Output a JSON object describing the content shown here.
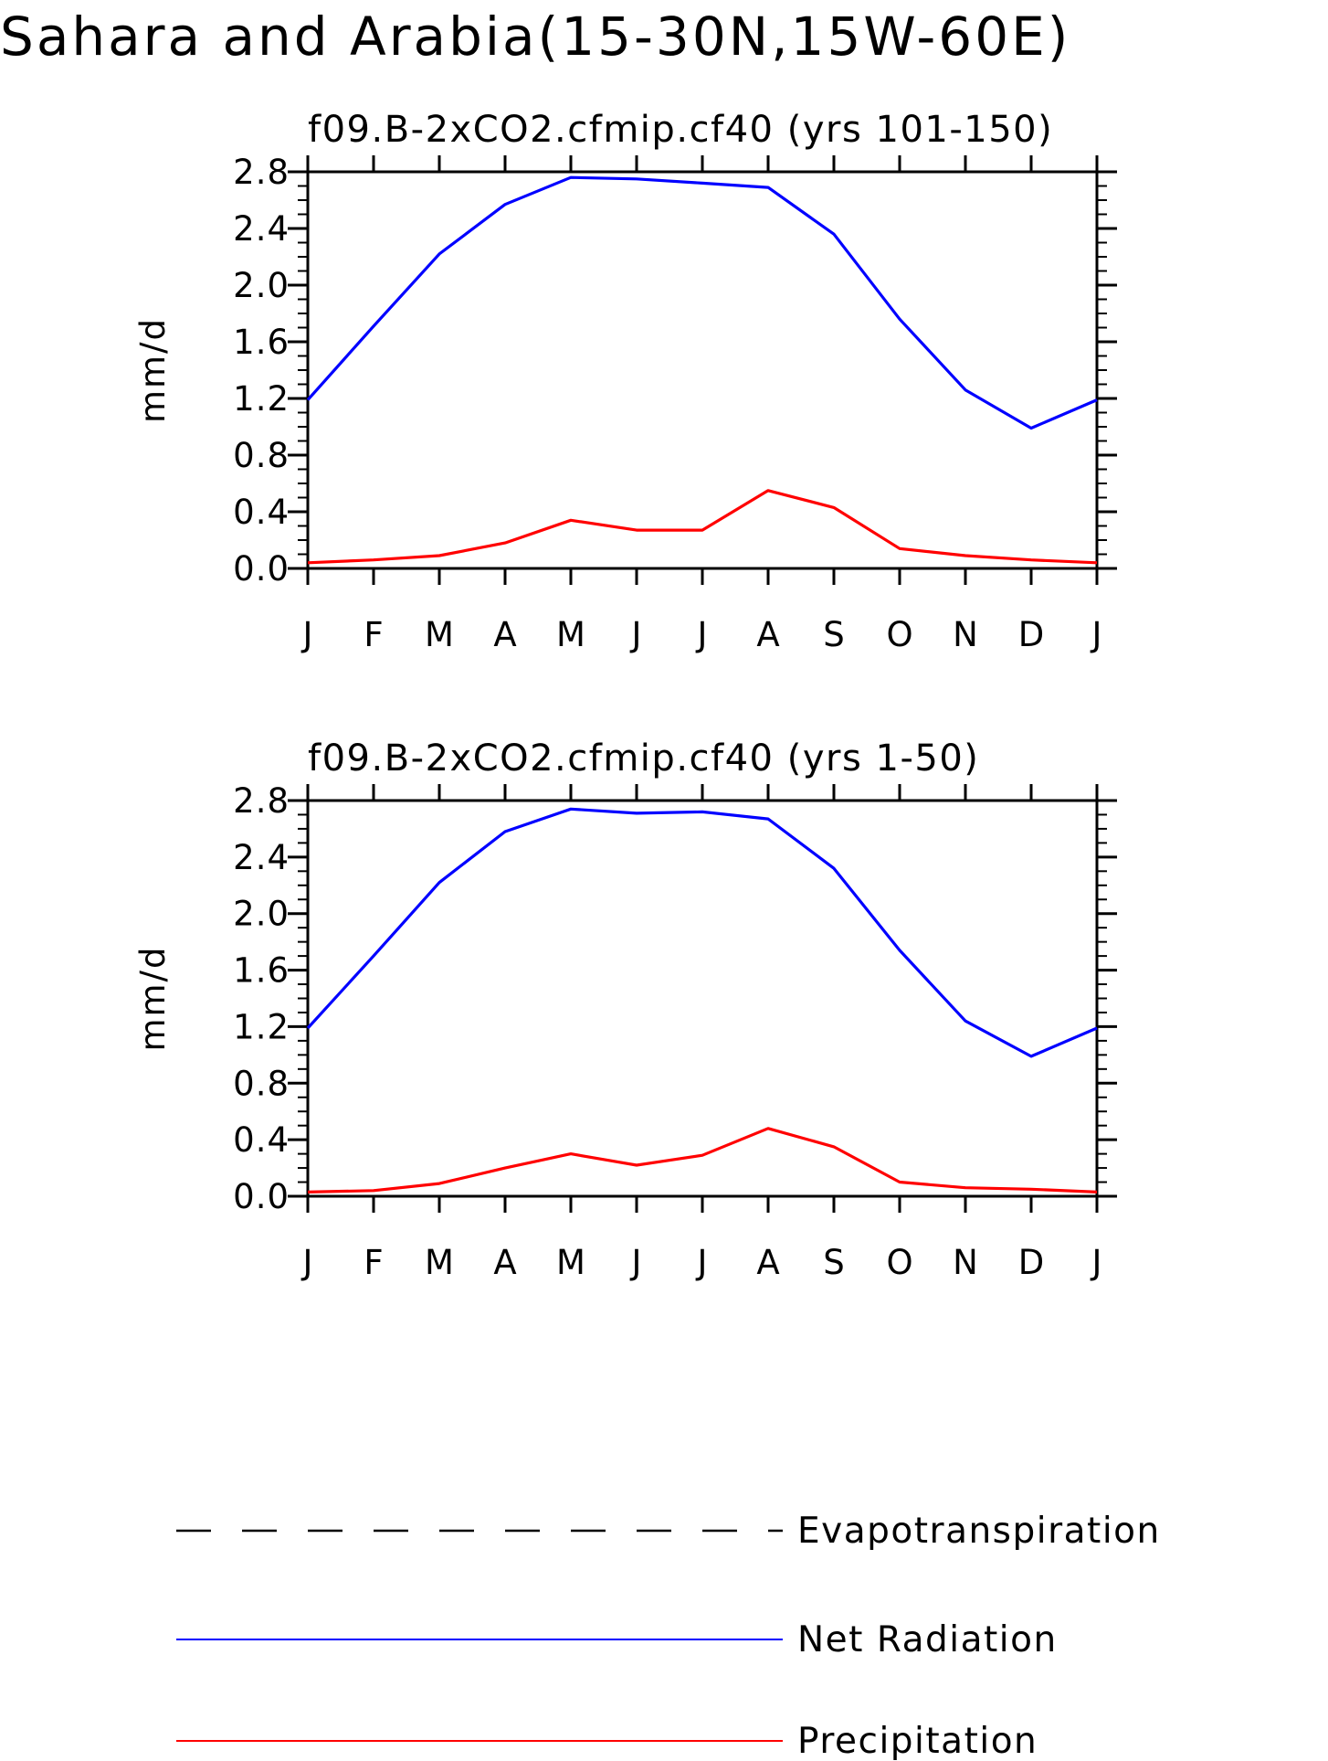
{
  "title": "Sahara and Arabia(15-30N,15W-60E)",
  "legend": [
    {
      "name": "Evapotranspiration",
      "color": "#000000",
      "style": "dashed"
    },
    {
      "name": "Net Radiation",
      "color": "#0000ff",
      "style": "solid"
    },
    {
      "name": "Precipitation",
      "color": "#ff0000",
      "style": "solid"
    }
  ],
  "chart_data": [
    {
      "type": "line",
      "title": "f09.B-2xCO2.cfmip.cf40 (yrs 101-150)",
      "ylabel": "mm/d",
      "xlabel": "",
      "categories": [
        "J",
        "F",
        "M",
        "A",
        "M",
        "J",
        "J",
        "A",
        "S",
        "O",
        "N",
        "D",
        "J"
      ],
      "ylim": [
        0,
        2.8
      ],
      "yticks": [
        "0.0",
        "0.4",
        "0.8",
        "1.2",
        "1.6",
        "2.0",
        "2.4",
        "2.8"
      ],
      "series": [
        {
          "name": "Net Radiation",
          "color": "#0000ff",
          "values": [
            1.19,
            1.71,
            2.22,
            2.57,
            2.76,
            2.75,
            2.72,
            2.69,
            2.36,
            1.76,
            1.26,
            0.99,
            1.19
          ]
        },
        {
          "name": "Precipitation",
          "color": "#ff0000",
          "values": [
            0.04,
            0.06,
            0.09,
            0.18,
            0.34,
            0.27,
            0.27,
            0.55,
            0.43,
            0.14,
            0.09,
            0.06,
            0.04
          ]
        }
      ]
    },
    {
      "type": "line",
      "title": "f09.B-2xCO2.cfmip.cf40 (yrs 1-50)",
      "ylabel": "mm/d",
      "xlabel": "",
      "categories": [
        "J",
        "F",
        "M",
        "A",
        "M",
        "J",
        "J",
        "A",
        "S",
        "O",
        "N",
        "D",
        "J"
      ],
      "ylim": [
        0,
        2.8
      ],
      "yticks": [
        "0.0",
        "0.4",
        "0.8",
        "1.2",
        "1.6",
        "2.0",
        "2.4",
        "2.8"
      ],
      "series": [
        {
          "name": "Net Radiation",
          "color": "#0000ff",
          "values": [
            1.19,
            1.7,
            2.22,
            2.58,
            2.74,
            2.71,
            2.72,
            2.67,
            2.32,
            1.74,
            1.24,
            0.99,
            1.19
          ]
        },
        {
          "name": "Precipitation",
          "color": "#ff0000",
          "values": [
            0.03,
            0.04,
            0.09,
            0.2,
            0.3,
            0.22,
            0.29,
            0.48,
            0.35,
            0.1,
            0.06,
            0.05,
            0.03
          ]
        }
      ]
    }
  ]
}
